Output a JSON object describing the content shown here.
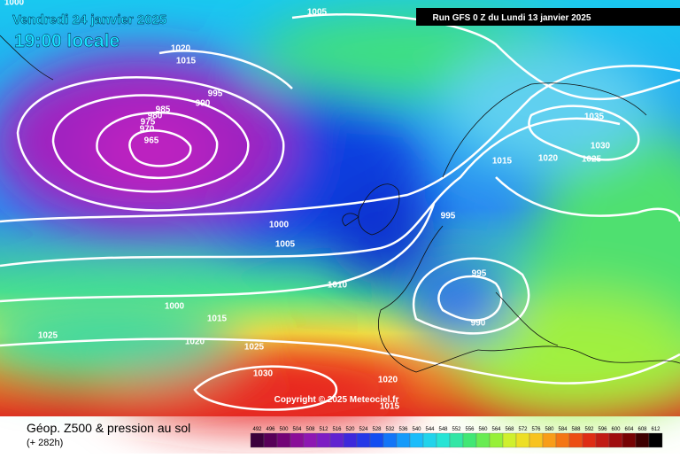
{
  "header": {
    "date": "Vendredi 24 janvier 2025",
    "time": "19:00 locale",
    "run": "Run GFS 0 Z du Lundi 13 janvier 2025"
  },
  "isobar_labels": [
    "1000",
    "1005",
    "1020",
    "1015",
    "995",
    "990",
    "985",
    "980",
    "975",
    "970",
    "965",
    "1035",
    "1030",
    "1015",
    "1020",
    "1025",
    "995",
    "1000",
    "1005",
    "995",
    "1010",
    "1000",
    "1015",
    "990",
    "1025",
    "1020",
    "1025",
    "1030",
    "1020",
    "1015"
  ],
  "copyright": "Copyright © 2025 Meteociel.fr",
  "footer": {
    "title": "Géop. Z500 & pression au sol",
    "lead": "(+ 282h)"
  },
  "legend": {
    "scale": [
      492,
      496,
      500,
      504,
      508,
      512,
      516,
      520,
      524,
      528,
      532,
      536,
      540,
      544,
      548,
      552,
      556,
      560,
      564,
      568,
      572,
      576,
      580,
      584,
      588,
      592,
      596,
      600,
      604,
      608,
      612
    ]
  }
}
